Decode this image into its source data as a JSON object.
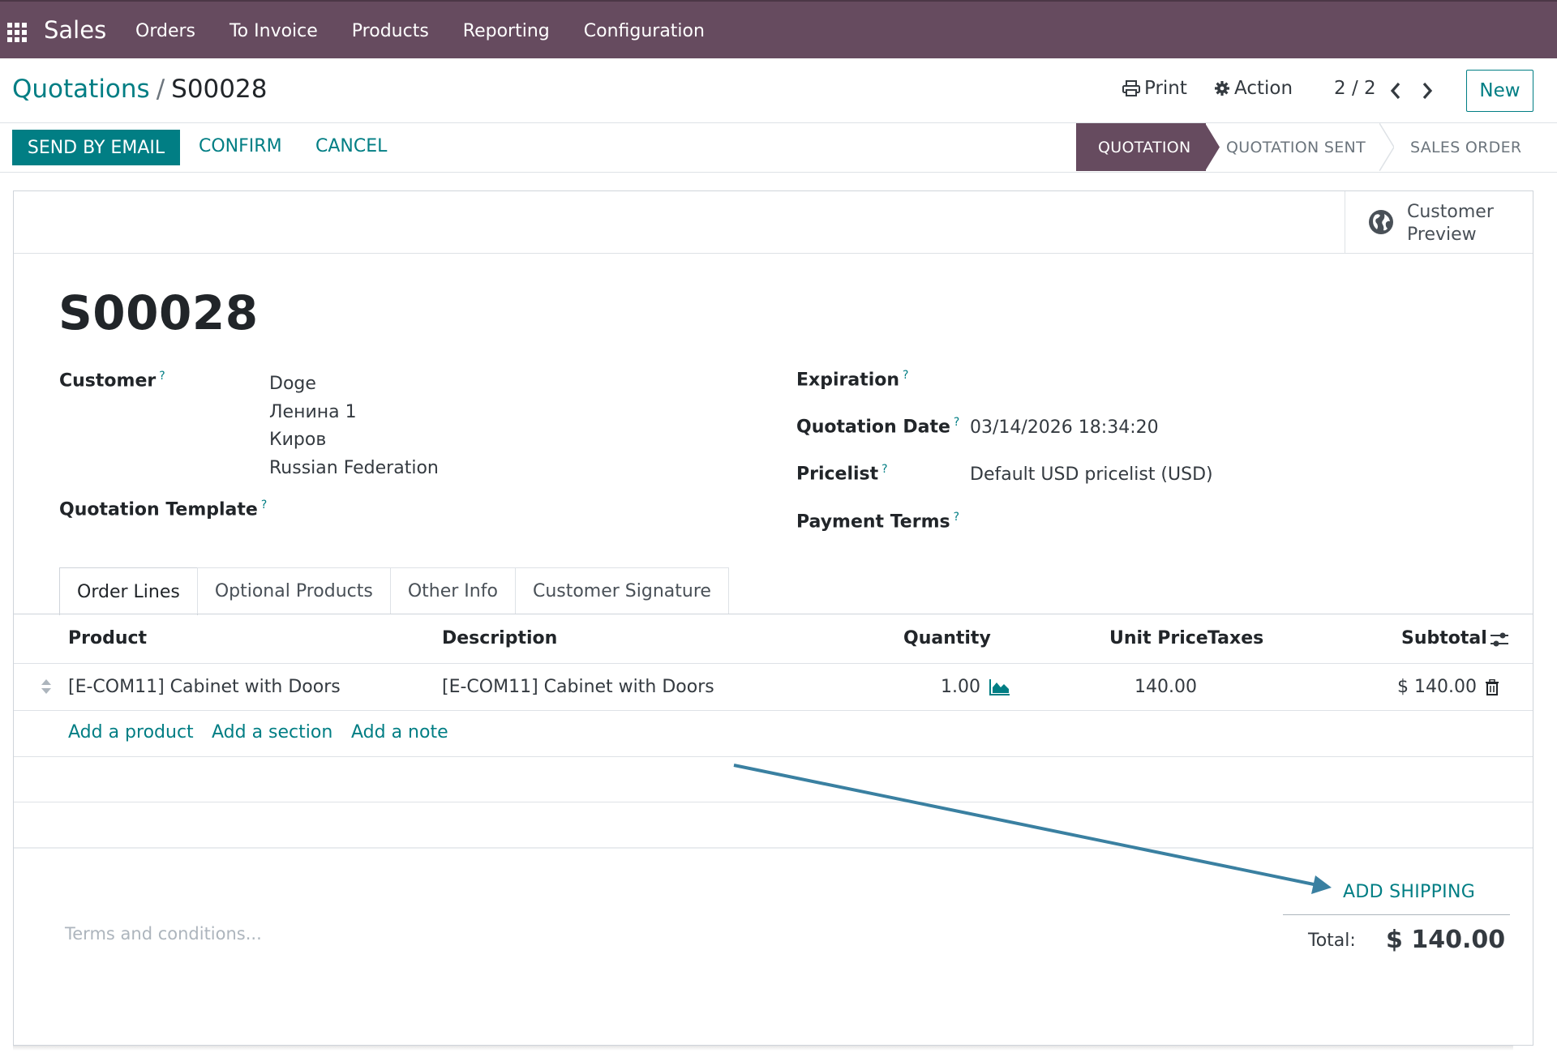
{
  "navbar": {
    "brand": "Sales",
    "menu": [
      "Orders",
      "To Invoice",
      "Products",
      "Reporting",
      "Configuration"
    ]
  },
  "control_panel": {
    "breadcrumb_parent": "Quotations",
    "breadcrumb_sep": "/",
    "breadcrumb_current": "S00028",
    "print_label": "Print",
    "action_label": "Action",
    "pager": "2 / 2",
    "new_label": "New"
  },
  "header_buttons": {
    "send_email": "SEND BY EMAIL",
    "confirm": "CONFIRM",
    "cancel": "CANCEL"
  },
  "statusbar": {
    "stages": [
      "QUOTATION",
      "QUOTATION SENT",
      "SALES ORDER"
    ],
    "active": "QUOTATION"
  },
  "smart_button": {
    "line1": "Customer",
    "line2": "Preview"
  },
  "form": {
    "title": "S00028",
    "customer_label": "Customer",
    "customer_lines": [
      "Doge",
      "Ленина 1",
      "Киров",
      "Russian Federation"
    ],
    "quotation_template_label": "Quotation Template",
    "expiration_label": "Expiration",
    "quotation_date_label": "Quotation Date",
    "quotation_date_value": "03/14/2026 18:34:20",
    "pricelist_label": "Pricelist",
    "pricelist_value": "Default USD pricelist (USD)",
    "payment_terms_label": "Payment Terms",
    "help_mark": "?"
  },
  "tabs": [
    "Order Lines",
    "Optional Products",
    "Other Info",
    "Customer Signature"
  ],
  "order_lines": {
    "headers": {
      "product": "Product",
      "description": "Description",
      "quantity": "Quantity",
      "unit_price": "Unit Price",
      "taxes": "Taxes",
      "subtotal": "Subtotal"
    },
    "rows": [
      {
        "product": "[E-COM11] Cabinet with Doors",
        "description": "[E-COM11] Cabinet with Doors",
        "quantity": "1.00",
        "unit_price": "140.00",
        "taxes": "",
        "subtotal": "$ 140.00"
      }
    ],
    "add_product": "Add a product",
    "add_section": "Add a section",
    "add_note": "Add a note"
  },
  "footer": {
    "terms_placeholder": "Terms and conditions...",
    "add_shipping": "ADD SHIPPING",
    "total_label": "Total:",
    "total_value": "$ 140.00"
  },
  "colors": {
    "navbar": "#664b5f",
    "accent": "#017e84",
    "annotation_arrow": "#3a80a1"
  },
  "icons": {
    "apps": "apps-grid-icon",
    "print": "printer-icon",
    "action": "gear-icon",
    "prev": "chevron-left-icon",
    "next": "chevron-right-icon",
    "globe": "globe-icon",
    "handle": "drag-handle-icon",
    "forecast": "area-chart-icon",
    "delete": "trash-icon",
    "optional_columns": "sliders-icon"
  }
}
